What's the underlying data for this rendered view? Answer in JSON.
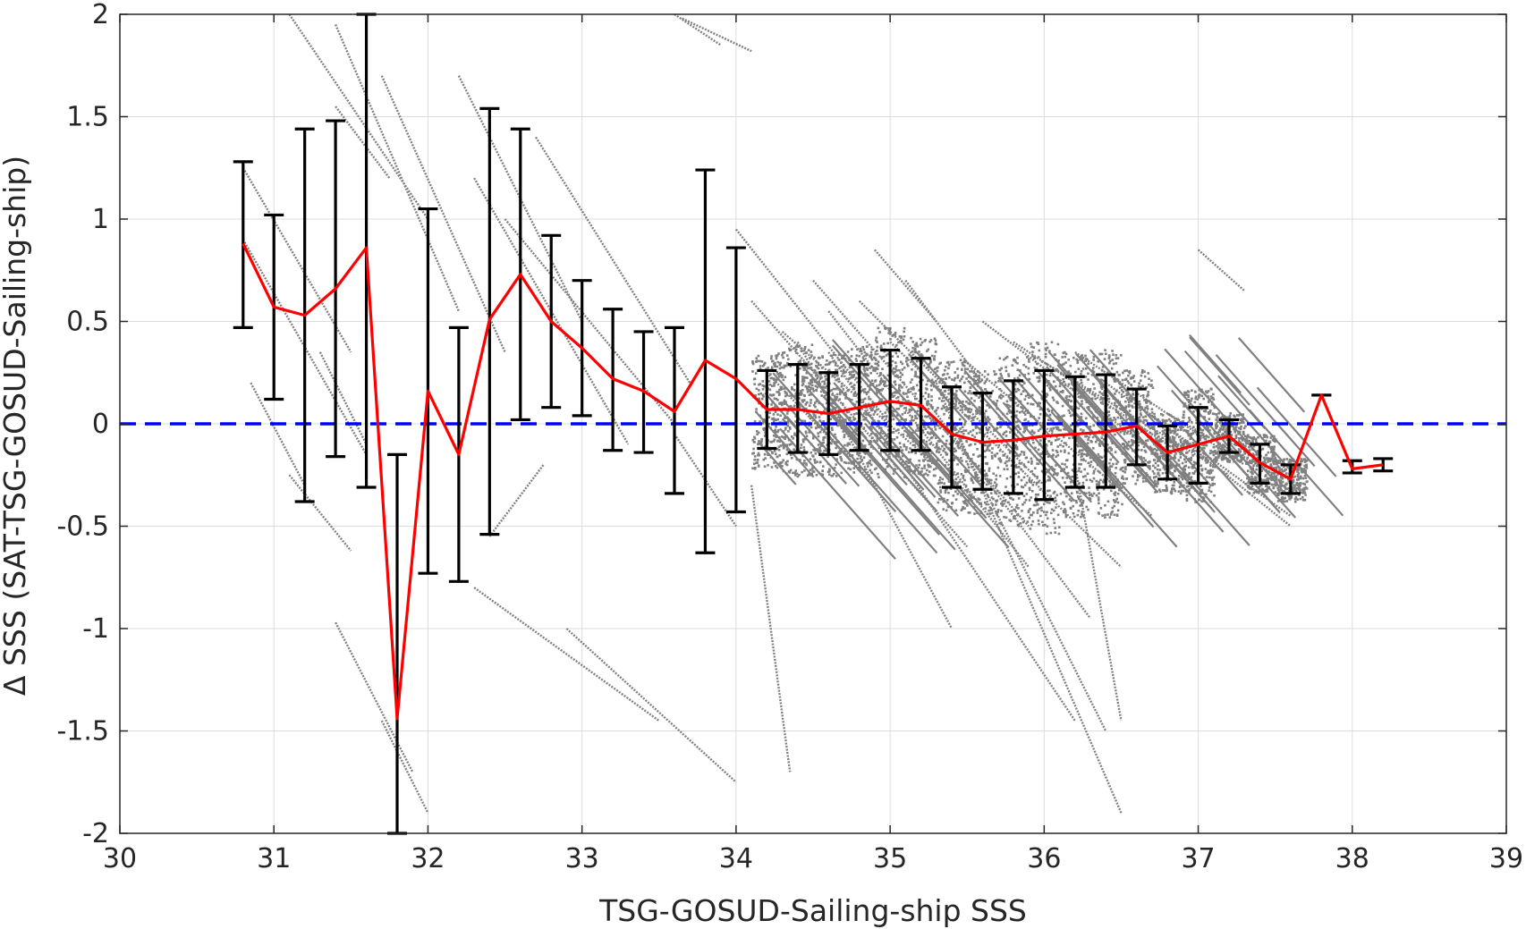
{
  "chart_data": {
    "type": "scatter",
    "xlabel": "TSG-GOSUD-Sailing-ship SSS",
    "ylabel": "Δ SSS (SAT-TSG-GOSUD-Sailing-ship)",
    "xlim": [
      30,
      39
    ],
    "ylim": [
      -2,
      2
    ],
    "xticks": [
      30,
      31,
      32,
      33,
      34,
      35,
      36,
      37,
      38,
      39
    ],
    "yticks": [
      -2,
      -1.5,
      -1,
      -0.5,
      0,
      0.5,
      1,
      1.5,
      2
    ],
    "grid": true,
    "reference_line": {
      "y": 0,
      "style": "dashed",
      "color": "#0000ff"
    },
    "colors": {
      "scatter": "#808080",
      "mean_line": "#ff0000",
      "error_bars": "#000000",
      "axes": "#262626",
      "grid": "#dcdcdc"
    },
    "binned_mean": {
      "x": [
        30.8,
        31.0,
        31.2,
        31.4,
        31.6,
        31.8,
        32.0,
        32.2,
        32.4,
        32.6,
        32.8,
        33.0,
        33.2,
        33.4,
        33.6,
        33.8,
        34.0,
        34.2,
        34.4,
        34.6,
        34.8,
        35.0,
        35.2,
        35.4,
        35.6,
        35.8,
        36.0,
        36.2,
        36.4,
        36.6,
        36.8,
        37.0,
        37.2,
        37.4,
        37.6,
        37.8,
        38.0,
        38.2
      ],
      "mean": [
        0.88,
        0.57,
        0.53,
        0.66,
        0.86,
        -1.44,
        0.16,
        -0.15,
        0.51,
        0.73,
        0.5,
        0.37,
        0.22,
        0.16,
        0.06,
        0.31,
        0.22,
        0.07,
        0.07,
        0.05,
        0.08,
        0.11,
        0.09,
        -0.05,
        -0.09,
        -0.08,
        -0.06,
        -0.05,
        -0.04,
        -0.01,
        -0.14,
        -0.1,
        -0.06,
        -0.19,
        -0.27,
        0.14,
        -0.22,
        -0.2
      ],
      "lower": [
        0.47,
        0.12,
        -0.38,
        -0.16,
        -0.31,
        -2.0,
        -0.73,
        -0.77,
        -0.54,
        0.02,
        0.08,
        0.04,
        -0.13,
        -0.14,
        -0.34,
        -0.63,
        -0.43,
        -0.12,
        -0.14,
        -0.15,
        -0.13,
        -0.13,
        -0.13,
        -0.31,
        -0.32,
        -0.34,
        -0.37,
        -0.31,
        -0.31,
        -0.2,
        -0.27,
        -0.29,
        -0.14,
        -0.29,
        -0.34,
        0.14,
        -0.24,
        -0.23
      ],
      "upper": [
        1.28,
        1.02,
        1.44,
        1.48,
        2.0,
        -0.15,
        1.05,
        0.47,
        1.54,
        1.44,
        0.92,
        0.7,
        0.56,
        0.45,
        0.47,
        1.24,
        0.86,
        0.26,
        0.29,
        0.25,
        0.29,
        0.36,
        0.32,
        0.18,
        0.15,
        0.21,
        0.26,
        0.23,
        0.24,
        0.17,
        -0.01,
        0.08,
        0.02,
        -0.1,
        -0.2,
        0.14,
        -0.18,
        -0.17
      ]
    },
    "scatter_streaks": [
      {
        "x0": 30.8,
        "y0": 1.25,
        "x1": 31.5,
        "y1": 0.35
      },
      {
        "x0": 30.8,
        "y0": 0.9,
        "x1": 31.6,
        "y1": -0.15
      },
      {
        "x0": 30.85,
        "y0": 0.2,
        "x1": 31.2,
        "y1": -0.3
      },
      {
        "x0": 31.1,
        "y0": -0.25,
        "x1": 31.5,
        "y1": -0.62
      },
      {
        "x0": 31.3,
        "y0": 0.35,
        "x1": 31.6,
        "y1": -0.1
      },
      {
        "x0": 31.4,
        "y0": 1.55,
        "x1": 31.75,
        "y1": 1.2
      },
      {
        "x0": 31.4,
        "y0": -0.97,
        "x1": 31.9,
        "y1": -1.7
      },
      {
        "x0": 31.7,
        "y0": -1.45,
        "x1": 32.0,
        "y1": -1.9
      },
      {
        "x0": 31.1,
        "y0": 2.0,
        "x1": 32.0,
        "y1": 1.0
      },
      {
        "x0": 31.4,
        "y0": 1.95,
        "x1": 32.2,
        "y1": 0.55
      },
      {
        "x0": 31.7,
        "y0": 1.7,
        "x1": 32.5,
        "y1": 0.35
      },
      {
        "x0": 32.2,
        "y0": 1.7,
        "x1": 33.0,
        "y1": 0.5
      },
      {
        "x0": 32.3,
        "y0": 1.2,
        "x1": 33.3,
        "y1": -0.1
      },
      {
        "x0": 32.5,
        "y0": 1.0,
        "x1": 33.6,
        "y1": 0.0
      },
      {
        "x0": 32.7,
        "y0": 1.4,
        "x1": 33.7,
        "y1": 0.2
      },
      {
        "x0": 32.4,
        "y0": -0.55,
        "x1": 32.75,
        "y1": -0.2
      },
      {
        "x0": 32.3,
        "y0": -0.8,
        "x1": 33.5,
        "y1": -1.45
      },
      {
        "x0": 32.9,
        "y0": -1.0,
        "x1": 34.0,
        "y1": -1.75
      },
      {
        "x0": 33.6,
        "y0": -0.05,
        "x1": 34.0,
        "y1": -0.5
      },
      {
        "x0": 33.6,
        "y0": 2.0,
        "x1": 33.9,
        "y1": 1.85
      },
      {
        "x0": 33.65,
        "y0": 1.98,
        "x1": 34.1,
        "y1": 1.82
      },
      {
        "x0": 34.0,
        "y0": 0.95,
        "x1": 35.0,
        "y1": 0.0
      },
      {
        "x0": 34.1,
        "y0": 0.6,
        "x1": 35.5,
        "y1": -0.6
      },
      {
        "x0": 34.3,
        "y0": 0.45,
        "x1": 35.6,
        "y1": -0.4
      },
      {
        "x0": 34.5,
        "y0": 0.7,
        "x1": 35.9,
        "y1": -0.5
      },
      {
        "x0": 34.6,
        "y0": 0.35,
        "x1": 36.2,
        "y1": -1.45
      },
      {
        "x0": 34.8,
        "y0": 0.6,
        "x1": 36.0,
        "y1": -0.3
      },
      {
        "x0": 34.9,
        "y0": 0.85,
        "x1": 35.3,
        "y1": 0.5
      },
      {
        "x0": 35.0,
        "y0": 0.4,
        "x1": 36.5,
        "y1": -0.7
      },
      {
        "x0": 35.2,
        "y0": 0.15,
        "x1": 36.3,
        "y1": -0.95
      },
      {
        "x0": 35.3,
        "y0": 0.2,
        "x1": 36.5,
        "y1": -1.9
      },
      {
        "x0": 35.4,
        "y0": 0.0,
        "x1": 36.4,
        "y1": -1.5
      },
      {
        "x0": 35.5,
        "y0": 0.3,
        "x1": 36.7,
        "y1": -0.45
      },
      {
        "x0": 35.6,
        "y0": 0.5,
        "x1": 37.0,
        "y1": -0.3
      },
      {
        "x0": 35.8,
        "y0": 0.4,
        "x1": 37.0,
        "y1": -0.2
      },
      {
        "x0": 36.0,
        "y0": 0.3,
        "x1": 37.2,
        "y1": -0.25
      },
      {
        "x0": 36.2,
        "y0": 0.35,
        "x1": 37.3,
        "y1": -0.2
      },
      {
        "x0": 36.4,
        "y0": 0.2,
        "x1": 37.6,
        "y1": -0.45
      },
      {
        "x0": 36.6,
        "y0": 0.1,
        "x1": 37.6,
        "y1": -0.5
      },
      {
        "x0": 36.2,
        "y0": -0.2,
        "x1": 36.5,
        "y1": -1.45
      },
      {
        "x0": 36.8,
        "y0": 0.05,
        "x1": 37.5,
        "y1": -0.25
      },
      {
        "x0": 37.0,
        "y0": 0.85,
        "x1": 37.3,
        "y1": 0.65
      },
      {
        "x0": 34.2,
        "y0": 0.25,
        "x1": 34.9,
        "y1": -0.3
      },
      {
        "x0": 34.6,
        "y0": 0.55,
        "x1": 35.9,
        "y1": -0.7
      },
      {
        "x0": 34.4,
        "y0": 0.4,
        "x1": 35.4,
        "y1": -1.0
      },
      {
        "x0": 35.1,
        "y0": 0.7,
        "x1": 35.6,
        "y1": 0.2
      },
      {
        "x0": 34.1,
        "y0": -0.3,
        "x1": 34.35,
        "y1": -1.7
      }
    ]
  }
}
